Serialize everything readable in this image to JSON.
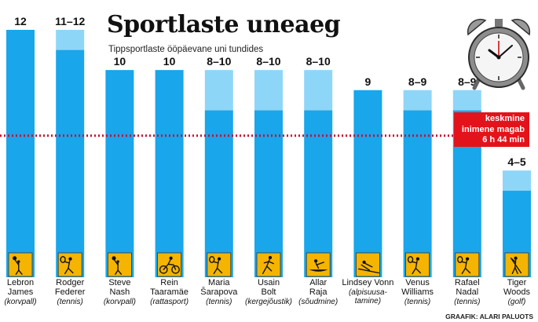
{
  "title": "Sportlaste uneaeg",
  "subtitle": "Tippsportlaste ööpäevane uni tundides",
  "average_note": [
    "keskmine",
    "inimene magab",
    "6 h 44 min"
  ],
  "credit": "GRAAFIK: ALARI PALUOTS",
  "icons": [
    "basketball-icon",
    "tennis-icon",
    "basketball-icon",
    "cyclist-icon",
    "tennis-icon",
    "sprinter-icon",
    "rowing-icon",
    "skier-icon",
    "tennis-icon",
    "tennis-icon",
    "golfer-icon",
    "alarm-clock-icon"
  ],
  "colors": {
    "bar": "#19a6ea",
    "range": "#8ed6f8",
    "avg_line": "#c8102e",
    "icon_bg": "#f4b400",
    "icon_fg": "#111111"
  },
  "chart_data": {
    "type": "bar",
    "title": "Sportlaste uneaeg",
    "subtitle": "Tippsportlaste ööpäevane uni tundides",
    "unit": "tundi",
    "ylim": [
      0,
      12
    ],
    "categories": [
      {
        "name": [
          "Lebron",
          "James"
        ],
        "sport": [
          "(korvpall)"
        ]
      },
      {
        "name": [
          "Rodger",
          "Federer"
        ],
        "sport": [
          "(tennis)"
        ]
      },
      {
        "name": [
          "Steve",
          "Nash"
        ],
        "sport": [
          "(korvpall)"
        ]
      },
      {
        "name": [
          "Rein",
          "Taaramäe"
        ],
        "sport": [
          "(rattasport)"
        ]
      },
      {
        "name": [
          "Maria",
          "Šarapova"
        ],
        "sport": [
          "(tennis)"
        ]
      },
      {
        "name": [
          "Usain",
          "Bolt"
        ],
        "sport": [
          "(kergejõustik)"
        ]
      },
      {
        "name": [
          "Allar",
          "Raja"
        ],
        "sport": [
          "(sõudmine)"
        ]
      },
      {
        "name": [
          "Lindsey Vonn"
        ],
        "sport": [
          "(alpisuusa-",
          "tamine)"
        ]
      },
      {
        "name": [
          "Venus",
          "Williams"
        ],
        "sport": [
          "(tennis)"
        ]
      },
      {
        "name": [
          "Rafael",
          "Nadal"
        ],
        "sport": [
          "(tennis)"
        ]
      },
      {
        "name": [
          "Tiger",
          "Woods"
        ],
        "sport": [
          "(golf)"
        ]
      }
    ],
    "min": [
      12,
      11,
      10,
      10,
      8,
      8,
      8,
      9,
      8,
      8,
      4
    ],
    "max": [
      12,
      12,
      10,
      10,
      10,
      10,
      10,
      9,
      9,
      9,
      5
    ],
    "labels": [
      "12",
      "11–12",
      "10",
      "10",
      "8–10",
      "8–10",
      "8–10",
      "9",
      "8–9",
      "8–9",
      "4–5"
    ],
    "reference_line": {
      "value": 6.733,
      "label": "keskmine inimene magab 6 h 44 min"
    }
  }
}
